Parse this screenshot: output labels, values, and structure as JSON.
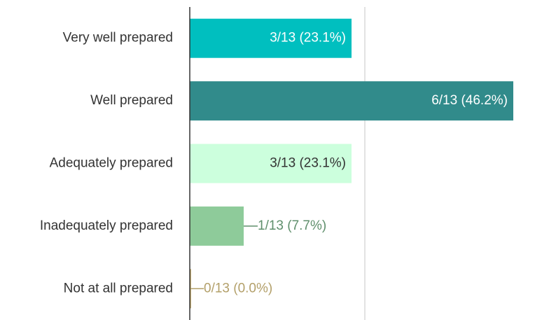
{
  "chart_data": {
    "type": "bar",
    "orientation": "horizontal",
    "categories": [
      "Very well prepared",
      "Well prepared",
      "Adequately prepared",
      "Inadequately prepared",
      "Not at all prepared"
    ],
    "values": [
      23.1,
      46.2,
      23.1,
      7.7,
      0.0
    ],
    "value_labels": [
      "3/13 (23.1%)",
      "6/13 (46.2%)",
      "3/13 (23.1%)",
      "1/13 (7.7%)",
      "0/13 (0.0%)"
    ],
    "colors": [
      "#00bfbf",
      "#318b8b",
      "#ccffdd",
      "#8ecb9a",
      "#c9b37a"
    ],
    "label_colors": [
      "#ffffff",
      "#ffffff",
      "#333333",
      "#5f8f6c",
      "#b3a06a"
    ],
    "xlim": [
      0,
      49.3
    ],
    "xticks": [
      25
    ],
    "grid": true
  }
}
